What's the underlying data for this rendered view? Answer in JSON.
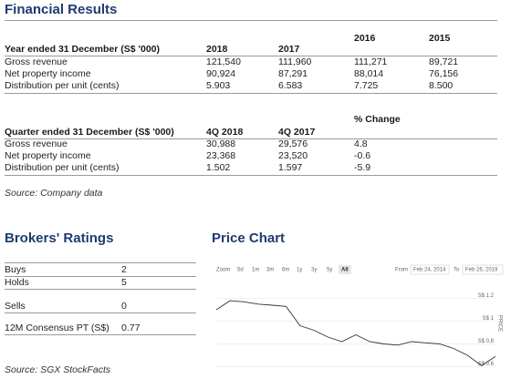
{
  "financial_results": {
    "title": "Financial Results",
    "annual": {
      "header": [
        "Year ended 31 December (S$ '000)",
        "2018",
        "2017",
        "2016",
        "2015"
      ],
      "rows": [
        [
          "Gross revenue",
          "121,540",
          "111,960",
          "111,271",
          "89,721"
        ],
        [
          "Net property income",
          "90,924",
          "87,291",
          "88,014",
          "76,156"
        ],
        [
          "Distribution per unit (cents)",
          "5.903",
          "6.583",
          "7.725",
          "8.500"
        ]
      ]
    },
    "quarterly": {
      "header": [
        "Quarter ended 31 December (S$ '000)",
        "4Q 2018",
        "4Q 2017",
        "% Change"
      ],
      "rows": [
        [
          "Gross revenue",
          "30,988",
          "29,576",
          "4.8"
        ],
        [
          "Net property income",
          "23,368",
          "23,520",
          "-0.6"
        ],
        [
          "Distribution per unit (cents)",
          "1.502",
          "1.597",
          "-5.9"
        ]
      ]
    },
    "source": "Source: Company data"
  },
  "brokers_ratings": {
    "title": "Brokers' Ratings",
    "rows": [
      [
        "Buys",
        "2"
      ],
      [
        "Holds",
        "5"
      ],
      [
        "Sells",
        "0"
      ],
      [
        "12M Consensus PT (S$)",
        "0.77"
      ]
    ],
    "source": "Source: SGX StockFacts"
  },
  "price_chart_title": "Price Chart",
  "chart_data": {
    "type": "line",
    "zoom_label": "Zoom",
    "range_buttons": [
      "5d",
      "1m",
      "3m",
      "6m",
      "1y",
      "3y",
      "5y",
      "All"
    ],
    "from_label": "From",
    "from_date": "Feb 24, 2014",
    "to_label": "To",
    "to_date": "Feb 26, 2019",
    "y_label": "PRICE",
    "color": "#333333",
    "values": [
      1.1,
      1.18,
      1.17,
      1.15,
      1.14,
      1.13,
      0.96,
      0.92,
      0.86,
      0.82,
      0.88,
      0.82,
      0.8,
      0.79,
      0.82,
      0.81,
      0.8,
      0.76,
      0.7,
      0.61,
      0.69
    ],
    "ylim": [
      0.58,
      1.38
    ],
    "yticks": [
      {
        "value": 0.6,
        "label": "S$ 0.6"
      },
      {
        "value": 0.8,
        "label": "S$ 0.8"
      },
      {
        "value": 1,
        "label": "S$ 1"
      },
      {
        "value": 1.2,
        "label": "S$ 1.2"
      }
    ],
    "grid": true
  }
}
